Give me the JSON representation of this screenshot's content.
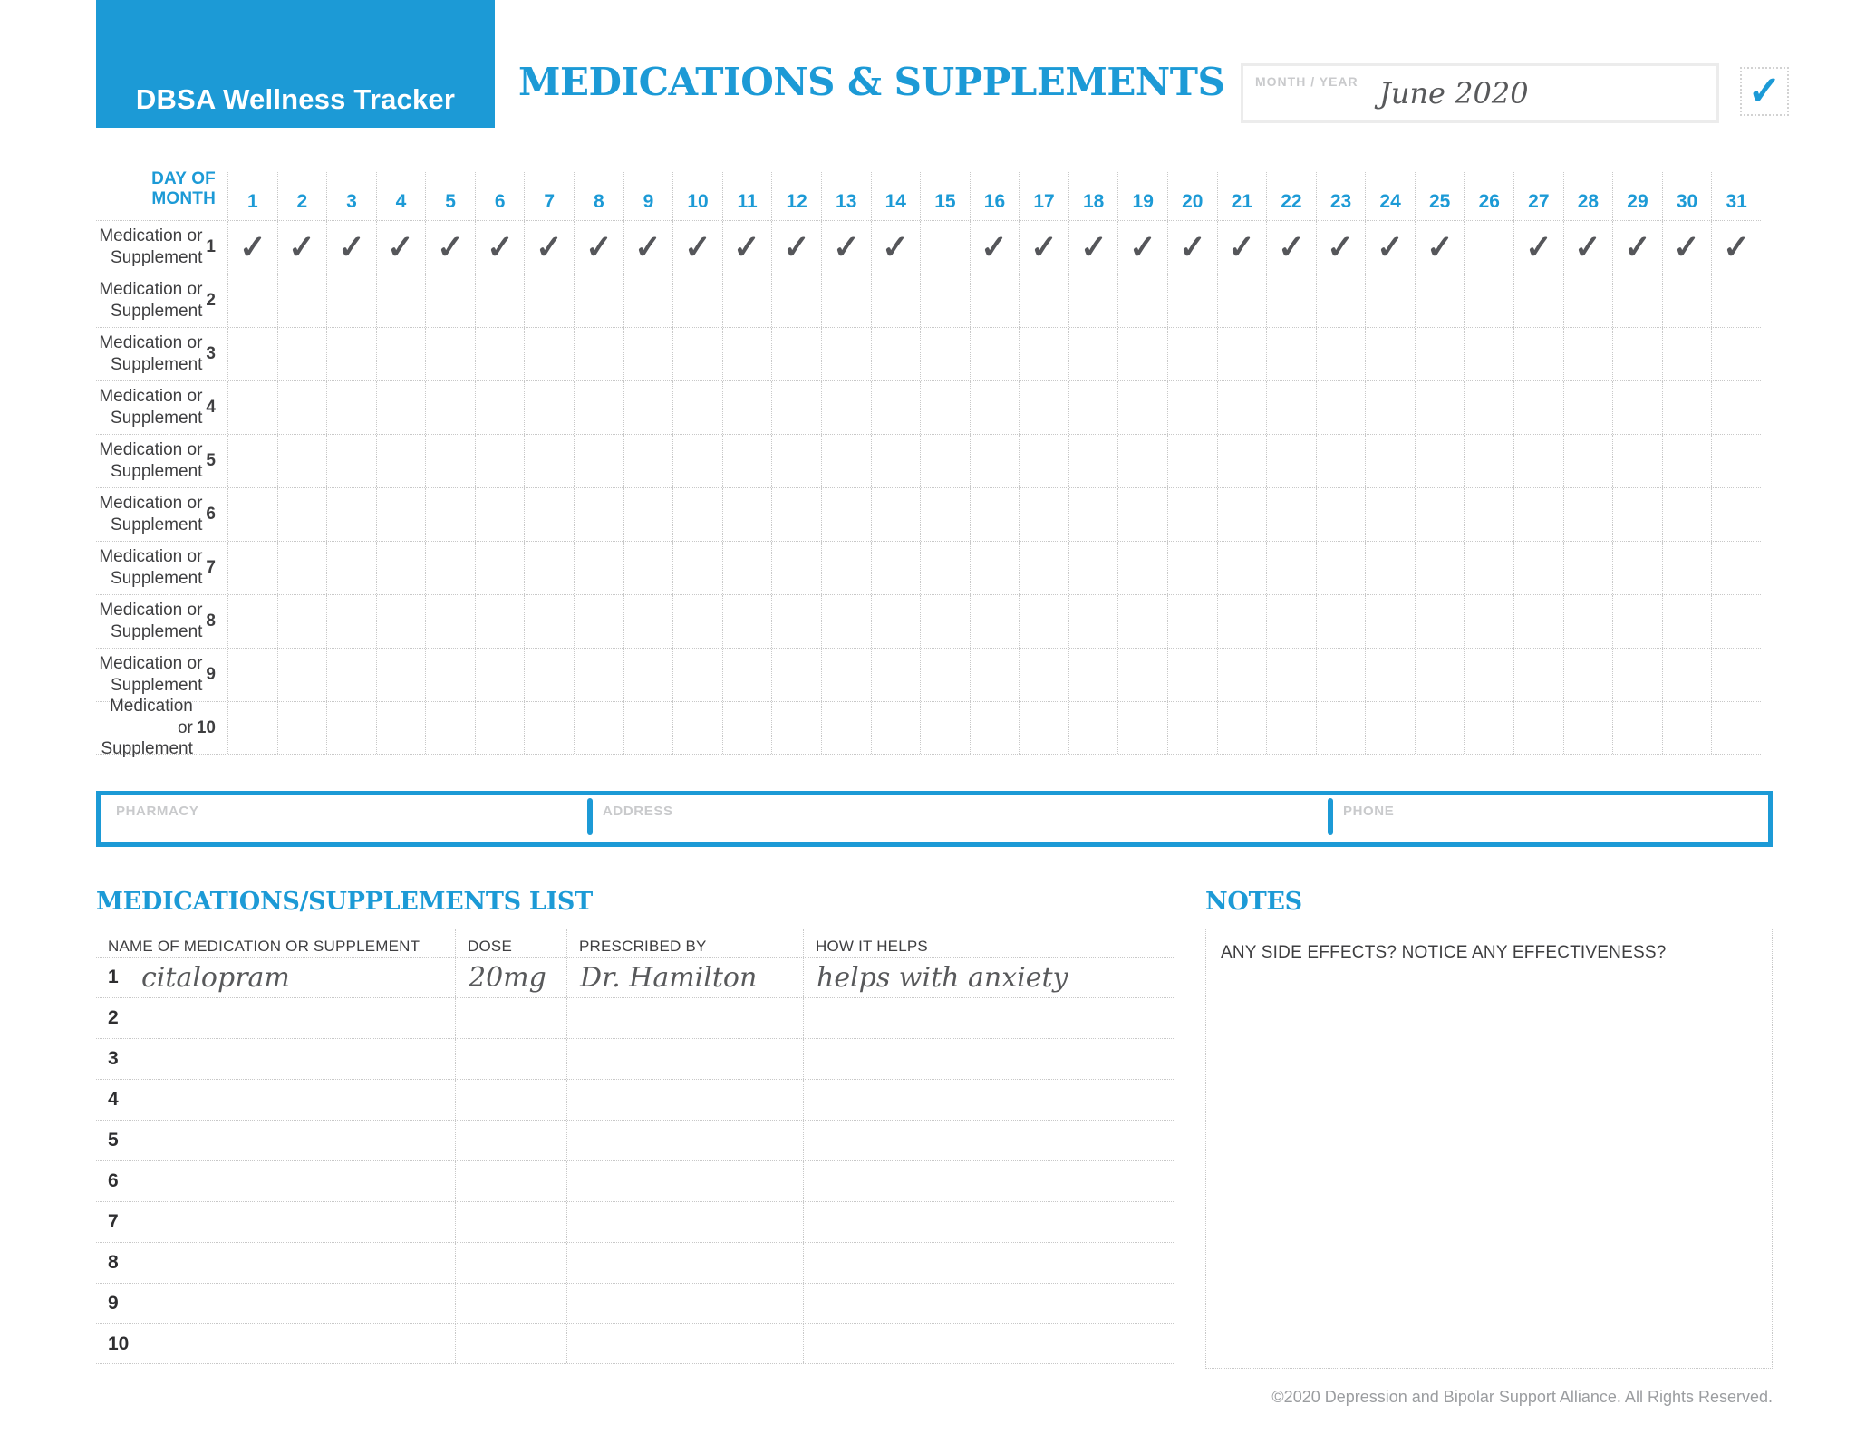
{
  "colors": {
    "accent": "#1c9ad6",
    "check_gray": "#55565a",
    "handwriting": "#58595b"
  },
  "brand": {
    "logo_text": "DBSA Wellness Tracker"
  },
  "header": {
    "title": "MEDICATIONS & SUPPLEMENTS",
    "month_year_label": "MONTH / YEAR",
    "month_year_value": "June 2020",
    "check_icon": "✓"
  },
  "tracker_grid": {
    "day_label": "DAY OF MONTH",
    "check_glyph": "✓",
    "days": [
      1,
      2,
      3,
      4,
      5,
      6,
      7,
      8,
      9,
      10,
      11,
      12,
      13,
      14,
      15,
      16,
      17,
      18,
      19,
      20,
      21,
      22,
      23,
      24,
      25,
      26,
      27,
      28,
      29,
      30,
      31
    ],
    "rows": [
      {
        "number": "1",
        "label_top": "Medication or",
        "label_bottom": "Supplement",
        "checked_days": [
          1,
          2,
          3,
          4,
          5,
          6,
          7,
          8,
          9,
          10,
          11,
          12,
          13,
          14,
          16,
          17,
          18,
          19,
          20,
          21,
          22,
          23,
          24,
          25,
          27,
          28,
          29,
          30,
          31
        ]
      },
      {
        "number": "2",
        "label_top": "Medication or",
        "label_bottom": "Supplement",
        "checked_days": []
      },
      {
        "number": "3",
        "label_top": "Medication or",
        "label_bottom": "Supplement",
        "checked_days": []
      },
      {
        "number": "4",
        "label_top": "Medication or",
        "label_bottom": "Supplement",
        "checked_days": []
      },
      {
        "number": "5",
        "label_top": "Medication or",
        "label_bottom": "Supplement",
        "checked_days": []
      },
      {
        "number": "6",
        "label_top": "Medication or",
        "label_bottom": "Supplement",
        "checked_days": []
      },
      {
        "number": "7",
        "label_top": "Medication or",
        "label_bottom": "Supplement",
        "checked_days": []
      },
      {
        "number": "8",
        "label_top": "Medication or",
        "label_bottom": "Supplement",
        "checked_days": []
      },
      {
        "number": "9",
        "label_top": "Medication or",
        "label_bottom": "Supplement",
        "checked_days": []
      },
      {
        "number": "10",
        "label_top": "Medication or",
        "label_bottom": "Supplement",
        "checked_days": []
      }
    ]
  },
  "pharmacy_bar": {
    "fields": [
      {
        "label": "PHARMACY",
        "value": ""
      },
      {
        "label": "ADDRESS",
        "value": ""
      },
      {
        "label": "PHONE",
        "value": ""
      }
    ]
  },
  "med_list": {
    "title": "MEDICATIONS/SUPPLEMENTS LIST",
    "columns": [
      "NAME OF MEDICATION OR SUPPLEMENT",
      "DOSE",
      "PRESCRIBED BY",
      "HOW IT HELPS"
    ],
    "rows": [
      {
        "num": "1",
        "name": "citalopram",
        "dose": "20mg",
        "prescribed_by": "Dr. Hamilton",
        "how_it_helps": "helps with anxiety"
      },
      {
        "num": "2",
        "name": "",
        "dose": "",
        "prescribed_by": "",
        "how_it_helps": ""
      },
      {
        "num": "3",
        "name": "",
        "dose": "",
        "prescribed_by": "",
        "how_it_helps": ""
      },
      {
        "num": "4",
        "name": "",
        "dose": "",
        "prescribed_by": "",
        "how_it_helps": ""
      },
      {
        "num": "5",
        "name": "",
        "dose": "",
        "prescribed_by": "",
        "how_it_helps": ""
      },
      {
        "num": "6",
        "name": "",
        "dose": "",
        "prescribed_by": "",
        "how_it_helps": ""
      },
      {
        "num": "7",
        "name": "",
        "dose": "",
        "prescribed_by": "",
        "how_it_helps": ""
      },
      {
        "num": "8",
        "name": "",
        "dose": "",
        "prescribed_by": "",
        "how_it_helps": ""
      },
      {
        "num": "9",
        "name": "",
        "dose": "",
        "prescribed_by": "",
        "how_it_helps": ""
      },
      {
        "num": "10",
        "name": "",
        "dose": "",
        "prescribed_by": "",
        "how_it_helps": ""
      }
    ]
  },
  "notes": {
    "title": "NOTES",
    "prompt": "ANY SIDE EFFECTS? NOTICE ANY EFFECTIVENESS?"
  },
  "footer": {
    "copyright": "©2020 Depression and Bipolar Support Alliance. All Rights Reserved."
  }
}
